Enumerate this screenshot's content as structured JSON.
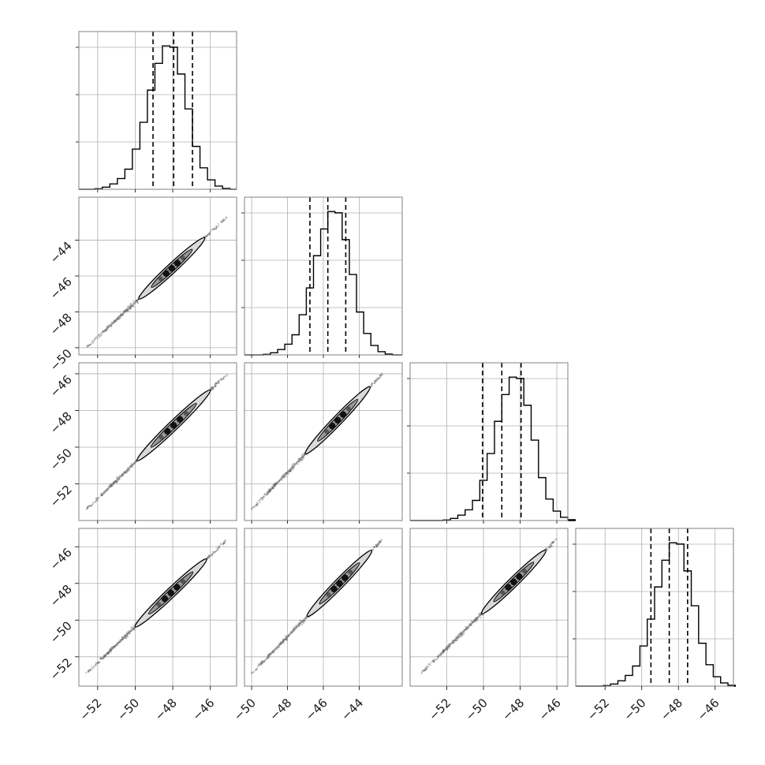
{
  "chart_data": {
    "type": "corner",
    "title": "",
    "n_params": 4,
    "grid": true,
    "colors": {
      "line": "#000000",
      "grid": "#b0b0b0",
      "spine": "#808080",
      "points": "#555555"
    },
    "parameters": [
      {
        "label": "",
        "range": [
          -53.0,
          -44.6
        ],
        "ticks": [
          "−52",
          "−50",
          "−48",
          "−46"
        ],
        "tick_values": [
          -52,
          -50,
          -48,
          -46
        ],
        "quantiles": [
          -49.05,
          -47.95,
          -46.95
        ]
      },
      {
        "label": "",
        "range": [
          -50.4,
          -41.6
        ],
        "ticks": [
          "−50",
          "−48",
          "−46",
          "−44"
        ],
        "tick_values": [
          -50,
          -48,
          -46,
          -44
        ],
        "quantiles": [
          -46.75,
          -45.75,
          -44.75
        ]
      },
      {
        "label": "",
        "range": [
          -54.0,
          -45.4
        ],
        "ticks": [
          "−52",
          "−50",
          "−48",
          "−46"
        ],
        "tick_values": [
          -52,
          -50,
          -48,
          -46
        ],
        "quantiles": [
          -50.05,
          -49.0,
          -47.95
        ]
      },
      {
        "label": "",
        "range": [
          -53.6,
          -45.0
        ],
        "ticks": [
          "−52",
          "−50",
          "−48",
          "−46"
        ],
        "tick_values": [
          -52,
          -50,
          -48,
          -46
        ],
        "quantiles": [
          -49.5,
          -48.5,
          -47.5
        ]
      }
    ],
    "histograms": [
      {
        "edges_start": -52.15,
        "bin_width": 0.4,
        "counts": [
          2,
          8,
          20,
          40,
          75,
          150,
          250,
          370,
          470,
          535,
          530,
          430,
          300,
          160,
          80,
          35,
          12,
          3
        ]
      },
      {
        "edges_start": -49.35,
        "bin_width": 0.4,
        "counts": [
          2,
          8,
          20,
          40,
          75,
          150,
          250,
          370,
          470,
          535,
          530,
          430,
          300,
          160,
          80,
          35,
          12,
          3
        ]
      },
      {
        "edges_start": -52.2,
        "bin_width": 0.4,
        "counts": [
          2,
          8,
          20,
          40,
          75,
          150,
          250,
          370,
          470,
          535,
          530,
          430,
          300,
          160,
          80,
          35,
          12,
          3
        ]
      },
      {
        "edges_start": -52.1,
        "bin_width": 0.4,
        "counts": [
          2,
          8,
          20,
          40,
          75,
          150,
          250,
          370,
          470,
          535,
          530,
          430,
          300,
          160,
          80,
          35,
          12,
          3
        ]
      }
    ],
    "pairs": [
      {
        "row": 1,
        "col": 0,
        "start": [
          -52.6,
          -50.0
        ],
        "end": [
          -45.1,
          -42.7
        ],
        "contour_len": [
          -49.8,
          -46.3
        ]
      },
      {
        "row": 2,
        "col": 0,
        "start": [
          -52.6,
          -53.4
        ],
        "end": [
          -45.1,
          -46.0
        ],
        "contour_len": [
          -49.9,
          -46.0
        ]
      },
      {
        "row": 2,
        "col": 1,
        "start": [
          -50.0,
          -53.4
        ],
        "end": [
          -42.7,
          -46.0
        ],
        "contour_len": [
          -47.0,
          -43.4
        ]
      },
      {
        "row": 3,
        "col": 0,
        "start": [
          -52.6,
          -52.9
        ],
        "end": [
          -45.1,
          -45.6
        ],
        "contour_len": [
          -50.0,
          -46.2
        ]
      },
      {
        "row": 3,
        "col": 1,
        "start": [
          -50.0,
          -52.9
        ],
        "end": [
          -42.7,
          -45.6
        ],
        "contour_len": [
          -46.9,
          -43.3
        ]
      },
      {
        "row": 3,
        "col": 2,
        "start": [
          -53.4,
          -52.9
        ],
        "end": [
          -46.0,
          -45.6
        ],
        "contour_len": [
          -50.1,
          -46.6
        ]
      }
    ]
  }
}
